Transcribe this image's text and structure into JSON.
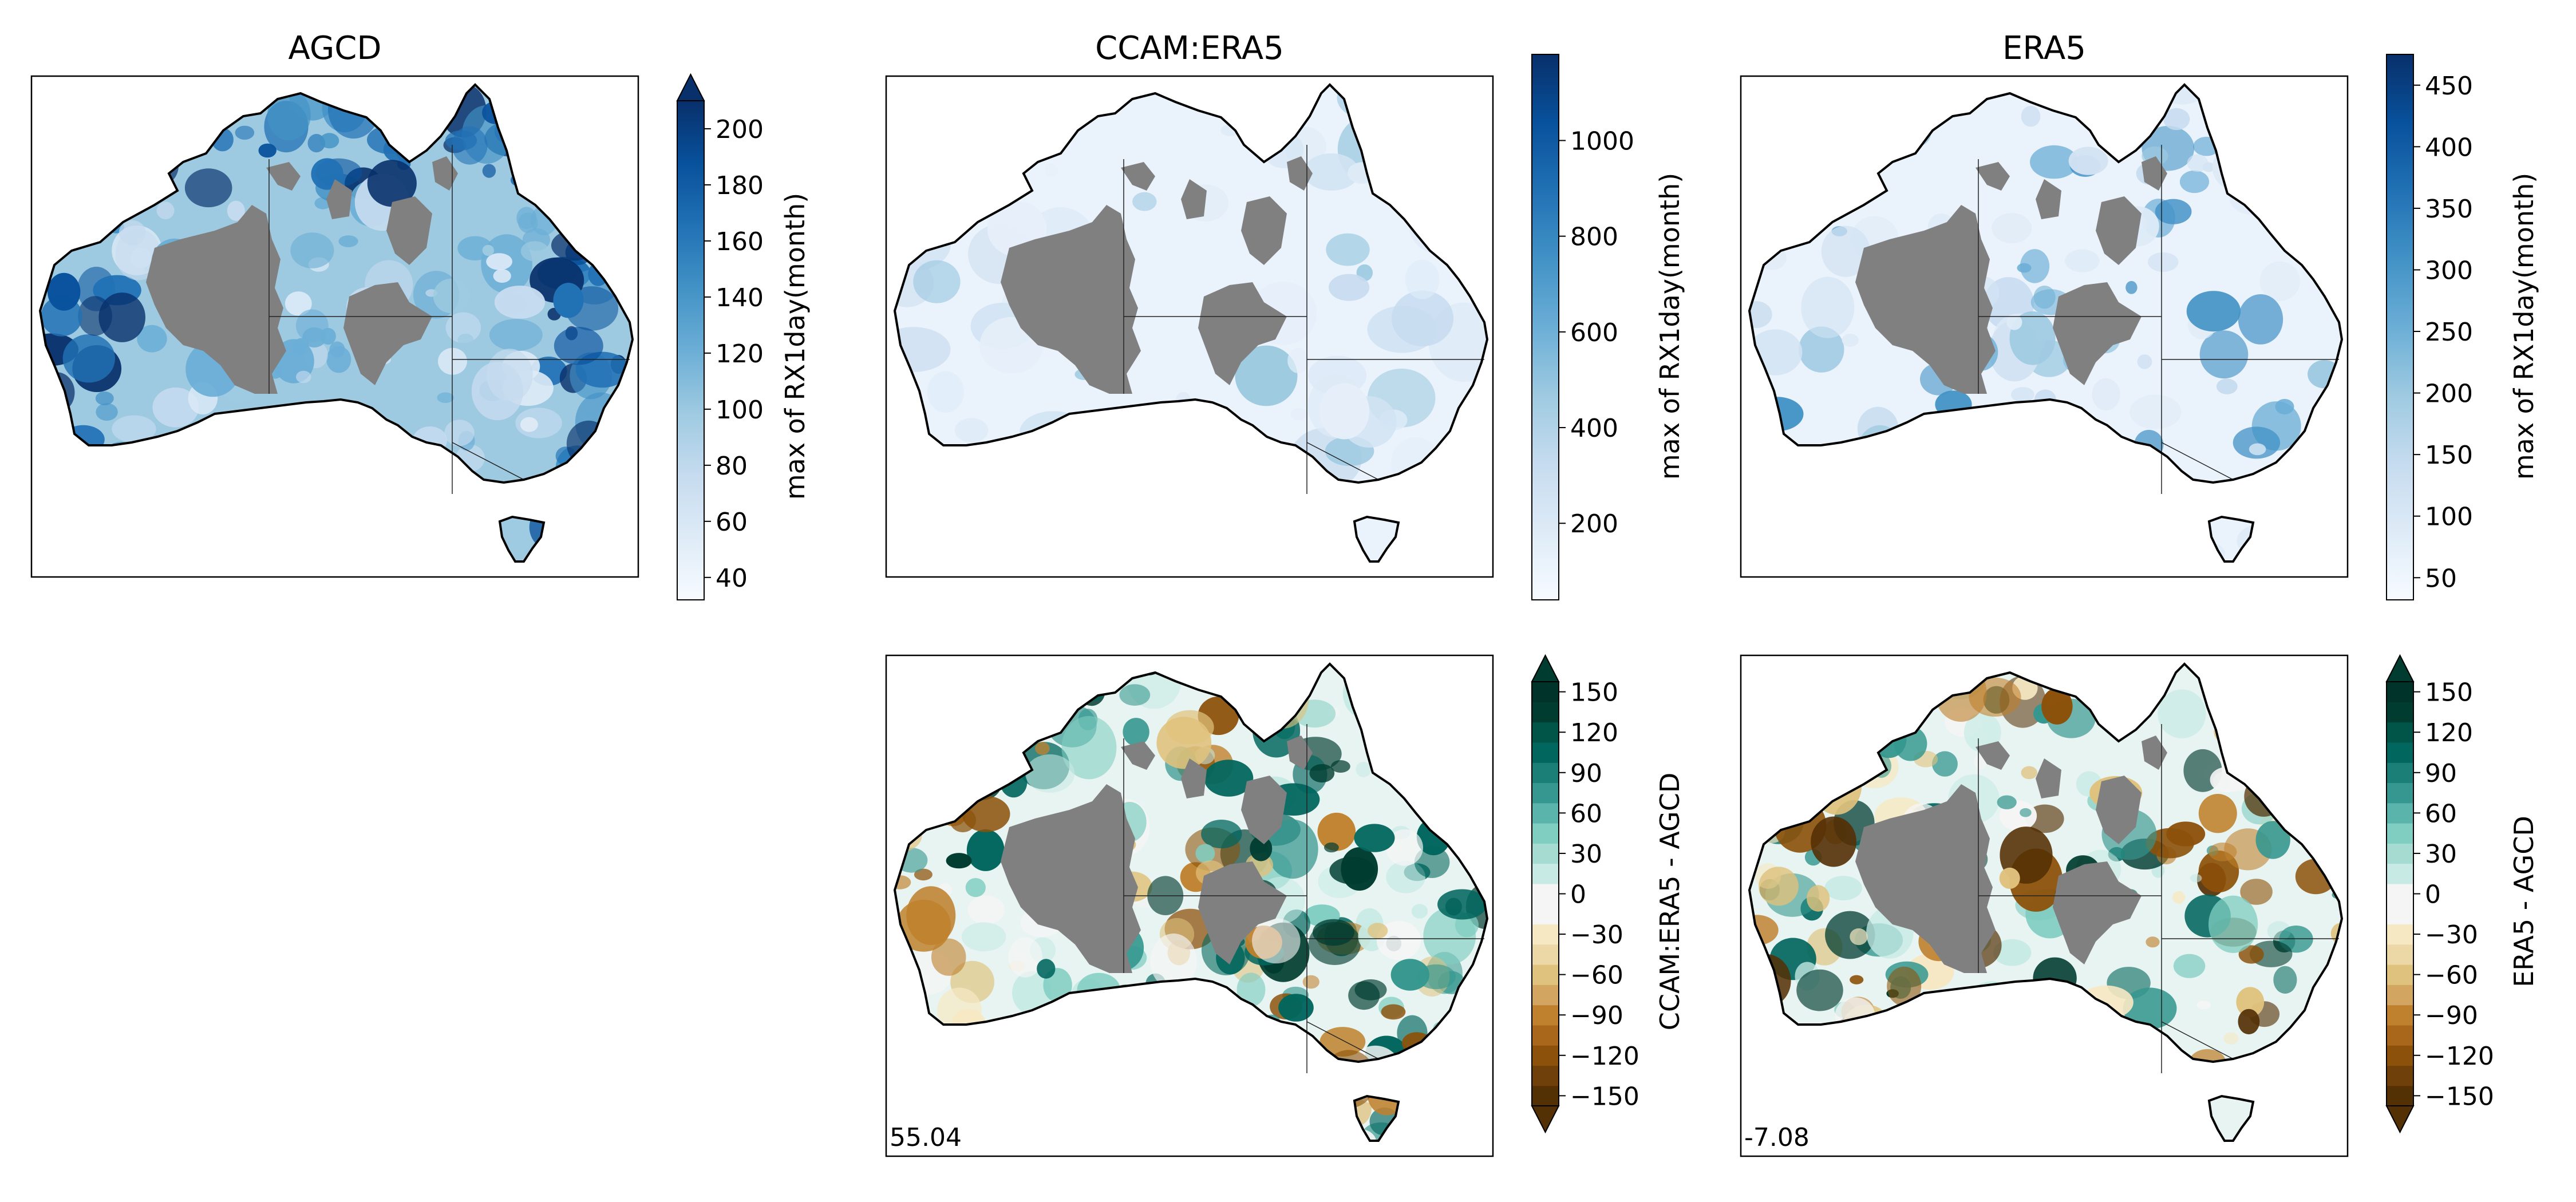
{
  "figure": {
    "land_color": "#f2f7fd",
    "nodata_color": "#808080",
    "panels": [
      {
        "id": "agcd",
        "title": "AGCD",
        "scheme": "blues",
        "stat": ""
      },
      {
        "id": "ccam",
        "title": "CCAM:ERA5",
        "scheme": "blues",
        "stat": ""
      },
      {
        "id": "era5",
        "title": "ERA5",
        "scheme": "blues",
        "stat": ""
      },
      {
        "id": "ccam_diff",
        "title": "",
        "scheme": "brbg",
        "stat": "55.04"
      },
      {
        "id": "era5_diff",
        "title": "",
        "scheme": "brbg",
        "stat": "-7.08"
      }
    ],
    "colorbars": [
      {
        "id": "cb_agcd",
        "label": "max of RX1day(month)",
        "type": "continuous",
        "min": 32,
        "max": 210,
        "extend": "max",
        "ticks": [
          "40",
          "60",
          "80",
          "100",
          "120",
          "140",
          "160",
          "180",
          "200"
        ],
        "tick_values": [
          40,
          60,
          80,
          100,
          120,
          140,
          160,
          180,
          200
        ],
        "colors": [
          "#f7fbff",
          "#deebf7",
          "#c6dbef",
          "#9ecae1",
          "#6baed6",
          "#4292c6",
          "#2171b5",
          "#08519c",
          "#08306b"
        ]
      },
      {
        "id": "cb_ccam",
        "label": "max of RX1day(month)",
        "type": "continuous",
        "min": 40,
        "max": 1180,
        "extend": "none",
        "ticks": [
          "200",
          "400",
          "600",
          "800",
          "1000"
        ],
        "tick_values": [
          200,
          400,
          600,
          800,
          1000
        ],
        "colors": [
          "#f7fbff",
          "#deebf7",
          "#c6dbef",
          "#9ecae1",
          "#6baed6",
          "#4292c6",
          "#2171b5",
          "#08519c",
          "#08306b"
        ]
      },
      {
        "id": "cb_era5",
        "label": "max of RX1day(month)",
        "type": "continuous",
        "min": 32,
        "max": 475,
        "extend": "none",
        "ticks": [
          "50",
          "100",
          "150",
          "200",
          "250",
          "300",
          "350",
          "400",
          "450"
        ],
        "tick_values": [
          50,
          100,
          150,
          200,
          250,
          300,
          350,
          400,
          450
        ],
        "colors": [
          "#f7fbff",
          "#deebf7",
          "#c6dbef",
          "#9ecae1",
          "#6baed6",
          "#4292c6",
          "#2171b5",
          "#08519c",
          "#08306b"
        ]
      },
      {
        "id": "cb_ccam_diff",
        "label": "CCAM:ERA5 - AGCD",
        "type": "discrete",
        "extend": "both",
        "ticks": [
          "150",
          "120",
          "90",
          "60",
          "30",
          "0",
          "−30",
          "−60",
          "−90",
          "−120",
          "−150"
        ],
        "levels": [
          -165,
          -150,
          -135,
          -120,
          -105,
          -90,
          -75,
          -60,
          -45,
          -30,
          -15,
          0,
          15,
          30,
          45,
          60,
          75,
          90,
          105,
          120,
          135,
          150,
          165
        ],
        "colors": [
          "#543005",
          "#6f4009",
          "#8c510a",
          "#a8671a",
          "#bf812d",
          "#d2a561",
          "#dfc27d",
          "#ecd8a6",
          "#f6e8c3",
          "#f5f5f5",
          "#f5f5f5",
          "#c7eae5",
          "#a6dbd2",
          "#80cdc1",
          "#5ab4ac",
          "#35978f",
          "#1c7f77",
          "#01665e",
          "#015448",
          "#003c30",
          "#00332a",
          "#003c30"
        ]
      },
      {
        "id": "cb_era5_diff",
        "label": "ERA5 - AGCD",
        "type": "discrete",
        "extend": "both",
        "ticks": [
          "150",
          "120",
          "90",
          "60",
          "30",
          "0",
          "−30",
          "−60",
          "−90",
          "−120",
          "−150"
        ],
        "levels": [
          -165,
          -150,
          -135,
          -120,
          -105,
          -90,
          -75,
          -60,
          -45,
          -30,
          -15,
          0,
          15,
          30,
          45,
          60,
          75,
          90,
          105,
          120,
          135,
          150,
          165
        ],
        "colors": [
          "#543005",
          "#6f4009",
          "#8c510a",
          "#a8671a",
          "#bf812d",
          "#d2a561",
          "#dfc27d",
          "#ecd8a6",
          "#f6e8c3",
          "#f5f5f5",
          "#f5f5f5",
          "#c7eae5",
          "#a6dbd2",
          "#80cdc1",
          "#5ab4ac",
          "#35978f",
          "#1c7f77",
          "#01665e",
          "#015448",
          "#003c30",
          "#00332a",
          "#003c30"
        ]
      }
    ]
  }
}
